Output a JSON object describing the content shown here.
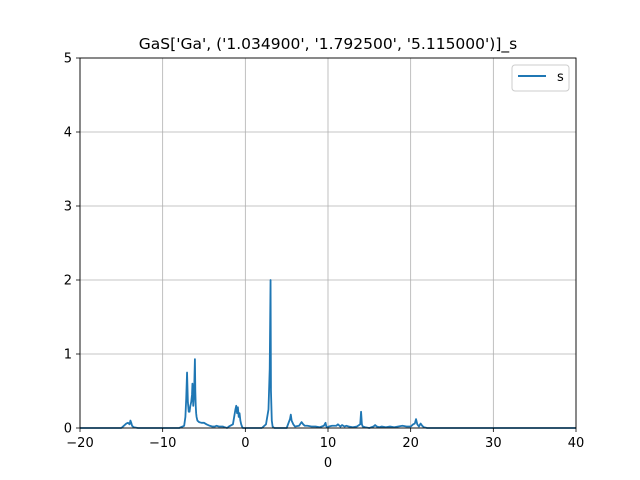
{
  "chart_data": {
    "type": "line",
    "title": "GaS['Ga', ('1.034900', '1.792500', '5.115000')]_s",
    "xlabel": "0",
    "ylabel": "",
    "xlim": [
      -20,
      40
    ],
    "ylim": [
      0,
      5
    ],
    "xticks": [
      -20,
      -10,
      0,
      10,
      20,
      30,
      40
    ],
    "yticks": [
      0,
      1,
      2,
      3,
      4,
      5
    ],
    "xtick_labels": [
      "−20",
      "−10",
      "0",
      "10",
      "20",
      "30",
      "40"
    ],
    "ytick_labels": [
      "0",
      "1",
      "2",
      "3",
      "4",
      "5"
    ],
    "grid": true,
    "legend_position": "top-right",
    "series": [
      {
        "name": "s",
        "color": "#1f77b4",
        "x": [
          -20,
          -15,
          -14.7,
          -14.4,
          -14.2,
          -14.0,
          -13.9,
          -13.8,
          -13.7,
          -13.5,
          -13.0,
          -8.0,
          -7.4,
          -7.25,
          -7.15,
          -7.05,
          -6.95,
          -6.85,
          -6.75,
          -6.65,
          -6.55,
          -6.45,
          -6.4,
          -6.3,
          -6.2,
          -6.15,
          -6.1,
          -6.05,
          -6.0,
          -5.95,
          -5.9,
          -5.8,
          -5.6,
          -5.3,
          -5.0,
          -4.7,
          -4.3,
          -4.0,
          -3.7,
          -3.5,
          -3.2,
          -3.0,
          -2.7,
          -2.5,
          -2.2,
          -2.0,
          -1.5,
          -1.2,
          -1.1,
          -1.0,
          -0.9,
          -0.8,
          -0.7,
          -0.6,
          -0.5,
          -0.4,
          -0.3,
          -0.2,
          0.0,
          0.5,
          1.0,
          2.0,
          2.5,
          2.8,
          2.95,
          3.05,
          3.1,
          3.2,
          3.3,
          3.5,
          4.0,
          5.0,
          5.4,
          5.5,
          5.6,
          5.8,
          6.0,
          6.5,
          6.8,
          7.0,
          7.2,
          7.5,
          8.0,
          8.5,
          9.0,
          9.5,
          9.7,
          9.8,
          9.9,
          10.1,
          10.5,
          11.0,
          11.2,
          11.5,
          11.7,
          12.0,
          12.2,
          12.5,
          13.0,
          13.5,
          13.9,
          14.0,
          14.1,
          14.2,
          14.5,
          15.0,
          15.5,
          15.7,
          15.9,
          16.2,
          16.5,
          17.0,
          17.5,
          18.0,
          18.5,
          19.0,
          19.5,
          20.0,
          20.3,
          20.5,
          20.65,
          20.8,
          21.0,
          21.2,
          21.4,
          21.6,
          22.0,
          40
        ],
        "y": [
          0.0,
          0.0,
          0.03,
          0.06,
          0.07,
          0.05,
          0.1,
          0.07,
          0.03,
          0.01,
          0.0,
          0.0,
          0.03,
          0.15,
          0.4,
          0.75,
          0.35,
          0.22,
          0.22,
          0.3,
          0.35,
          0.45,
          0.6,
          0.3,
          0.45,
          0.7,
          0.93,
          0.5,
          0.3,
          0.2,
          0.15,
          0.1,
          0.08,
          0.07,
          0.07,
          0.05,
          0.03,
          0.02,
          0.02,
          0.03,
          0.02,
          0.02,
          0.02,
          0.01,
          0.0,
          0.02,
          0.05,
          0.25,
          0.3,
          0.2,
          0.28,
          0.15,
          0.2,
          0.1,
          0.05,
          0.02,
          0.0,
          0.0,
          0.0,
          0.0,
          0.0,
          0.0,
          0.05,
          0.25,
          0.8,
          2.0,
          0.5,
          0.1,
          0.02,
          0.0,
          0.0,
          0.0,
          0.12,
          0.18,
          0.1,
          0.05,
          0.02,
          0.03,
          0.08,
          0.05,
          0.03,
          0.03,
          0.02,
          0.02,
          0.01,
          0.03,
          0.07,
          0.02,
          0.01,
          0.02,
          0.03,
          0.03,
          0.05,
          0.02,
          0.04,
          0.02,
          0.03,
          0.02,
          0.01,
          0.02,
          0.05,
          0.22,
          0.05,
          0.02,
          0.01,
          0.0,
          0.02,
          0.04,
          0.02,
          0.01,
          0.02,
          0.01,
          0.02,
          0.01,
          0.02,
          0.03,
          0.02,
          0.02,
          0.05,
          0.06,
          0.12,
          0.05,
          0.02,
          0.06,
          0.03,
          0.01,
          0.0,
          0.0
        ]
      }
    ]
  }
}
